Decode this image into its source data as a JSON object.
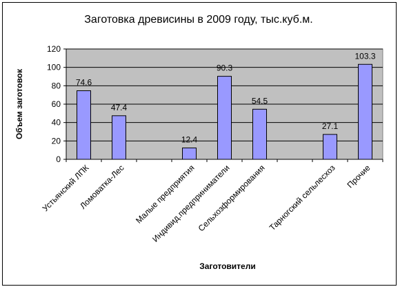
{
  "chart_data": {
    "type": "bar",
    "title": "Заготовка древисины в 2009 году, тыс.куб.м.",
    "xlabel": "Заготовители",
    "ylabel": "Объем заготовок",
    "ylim": [
      0,
      120
    ],
    "yticks": [
      0,
      20,
      40,
      60,
      80,
      100,
      120
    ],
    "categories": [
      "Устьянский ЛПК",
      "Ломоватка-Лес",
      "",
      "Малые предприятия",
      "Индивид.предприниматели",
      "Сельхозформирования",
      "",
      "Тарногский сельлесхоз",
      "Прочие"
    ],
    "values": [
      74.6,
      47.4,
      null,
      12.4,
      90.3,
      54.5,
      null,
      27.1,
      103.3
    ],
    "data_labels": [
      "74.6",
      "47.4",
      "",
      "12.4",
      "90.3",
      "54.5",
      "",
      "27.1",
      "103.3"
    ],
    "grid": true,
    "legend": "none",
    "colors": {
      "bar_fill": "#9999ff",
      "bar_stroke": "#000000",
      "plot_background": "#c0c0c0",
      "gridline": "#000000"
    }
  }
}
